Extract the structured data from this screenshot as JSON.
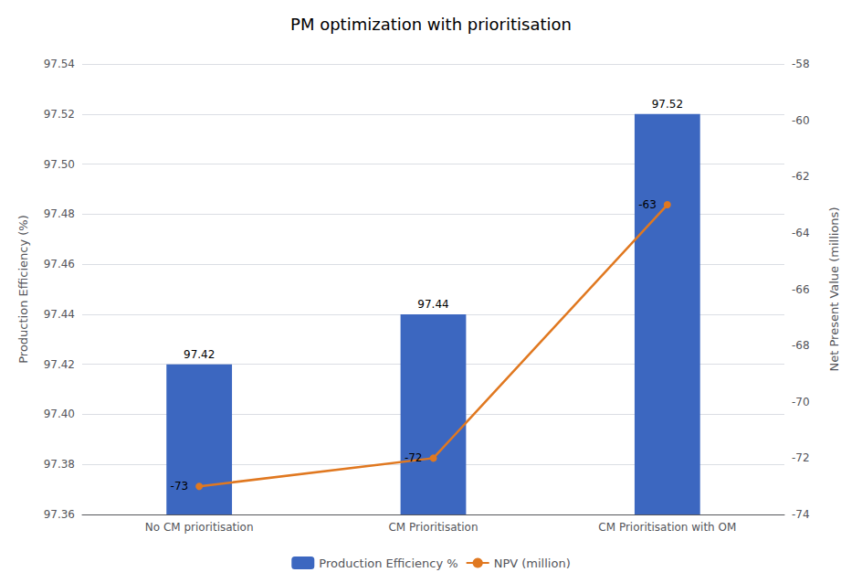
{
  "chart_data": {
    "type": "bar",
    "title": "PM optimization with prioritisation",
    "categories": [
      "No CM prioritisation",
      "CM Prioritisation",
      "CM Prioritisation with OM"
    ],
    "series": [
      {
        "name": "Production Efficiency %",
        "type": "bar",
        "color": "#3C67C0",
        "values": [
          97.42,
          97.44,
          97.52
        ],
        "value_labels": [
          "97.42",
          "97.44",
          "97.52"
        ]
      },
      {
        "name": "NPV (million)",
        "type": "line",
        "color": "#E07820",
        "axis": "y2",
        "marker": "circle",
        "values": [
          -73,
          -72,
          -63
        ]
      }
    ],
    "ylabel": "Production Efficiency (%)",
    "y2label": "Net Present Value (millions)",
    "ylim": [
      97.36,
      97.54
    ],
    "yticks": [
      97.36,
      97.38,
      {
        "value": 97.4,
        "label": "97.40"
      },
      97.42,
      97.44,
      97.46,
      97.48,
      {
        "value": 97.5,
        "label": "97.50"
      },
      97.52,
      97.54
    ],
    "y2lim": [
      -74,
      -58
    ],
    "y2ticks": [
      -74,
      -72,
      -70,
      -68,
      -66,
      -64,
      -62,
      -60,
      -58
    ],
    "grid": true,
    "legend": "bottom",
    "data_labels": true
  }
}
